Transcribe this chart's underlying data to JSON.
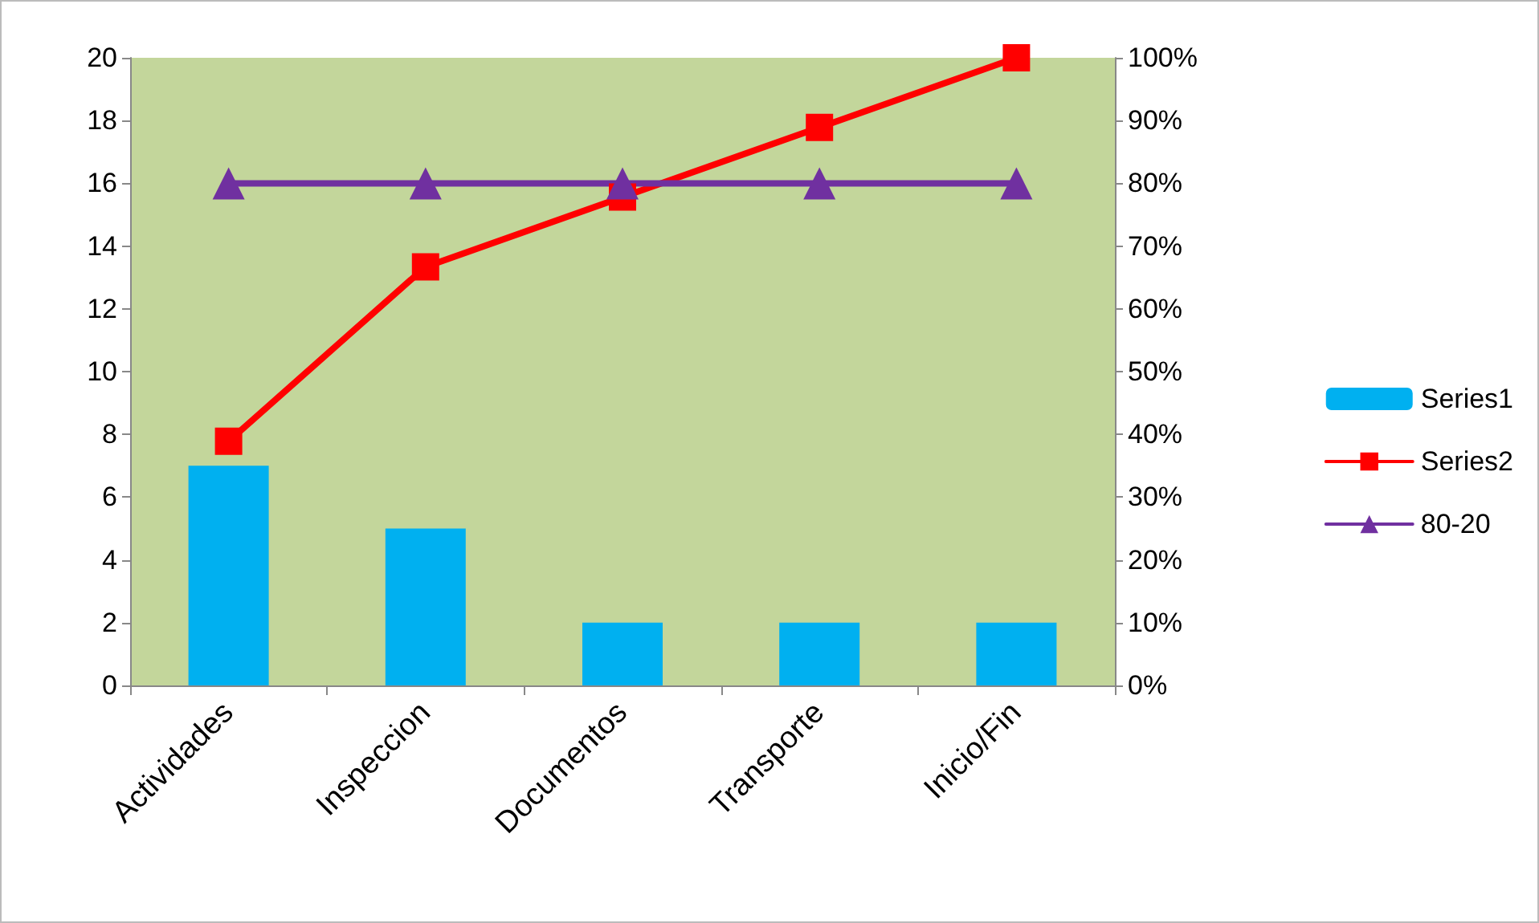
{
  "chart_data": {
    "type": "bar",
    "categories": [
      "Actividades",
      "Inspeccion",
      "Documentos",
      "Transporte",
      "Inicio/Fin"
    ],
    "series": [
      {
        "name": "Series1",
        "color": "#00b0f0",
        "values": [
          7,
          5,
          2,
          2,
          2
        ]
      },
      {
        "name": "Series2",
        "type": "line",
        "axis": "y2",
        "marker": "square",
        "color": "#ff0000",
        "values": [
          38.9,
          66.7,
          77.8,
          88.9,
          100
        ]
      },
      {
        "name": "80-20",
        "type": "line",
        "axis": "y2",
        "marker": "triangle",
        "color": "#7030a0",
        "values": [
          80,
          80,
          80,
          80,
          80
        ]
      }
    ],
    "ylim": [
      0,
      20
    ],
    "yticks": [
      0,
      2,
      4,
      6,
      8,
      10,
      12,
      14,
      16,
      18,
      20
    ],
    "y2lim": [
      0,
      100
    ],
    "y2ticks": [
      {
        "value": 0,
        "label": "0%"
      },
      {
        "value": 10,
        "label": "10%"
      },
      {
        "value": 20,
        "label": "20%"
      },
      {
        "value": 30,
        "label": "30%"
      },
      {
        "value": 40,
        "label": "40%"
      },
      {
        "value": 50,
        "label": "50%"
      },
      {
        "value": 60,
        "label": "60%"
      },
      {
        "value": 70,
        "label": "70%"
      },
      {
        "value": 80,
        "label": "80%"
      },
      {
        "value": 90,
        "label": "90%"
      },
      {
        "value": 100,
        "label": "100%"
      }
    ],
    "grid": false,
    "legend": "right",
    "line_style": "solid"
  }
}
